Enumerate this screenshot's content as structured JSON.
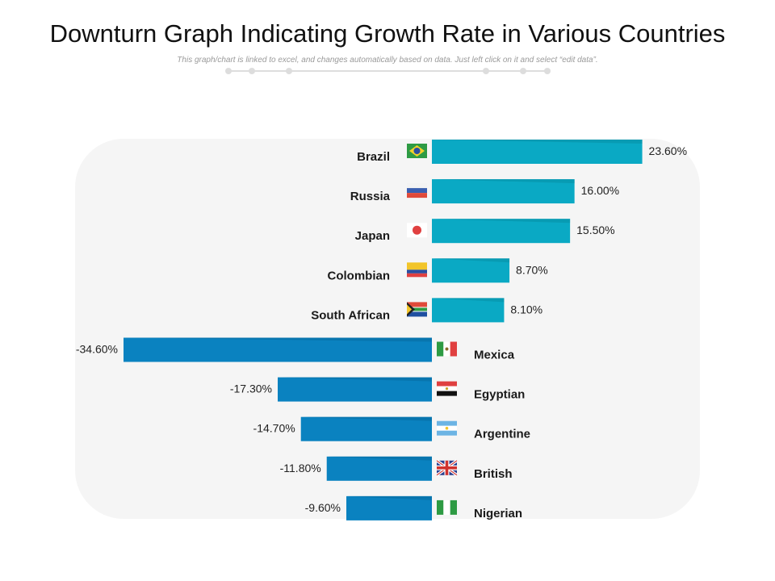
{
  "page": {
    "title": "Downturn Graph Indicating Growth Rate in Various Countries",
    "subtitle": "This graph/chart is linked to excel, and changes automatically based on data. Just left click on it and select “edit data”."
  },
  "colors": {
    "positive_bar": "#0aa9c4",
    "positive_bar_dark": "#078fa6",
    "negative_bar": "#0a82c0",
    "negative_bar_dark": "#076b9e",
    "panel_background": "#f5f5f5",
    "decor_line": "#dddddd"
  },
  "chart_data": {
    "type": "bar",
    "orientation": "horizontal",
    "title": "Downturn Graph Indicating Growth Rate in Various Countries",
    "unit": "%",
    "categories": [
      "Brazil",
      "Russia",
      "Japan",
      "Colombian",
      "South African",
      "Mexica",
      "Egyptian",
      "Argentine",
      "British",
      "Nigerian"
    ],
    "values": [
      23.6,
      16.0,
      15.5,
      8.7,
      8.1,
      -34.6,
      -17.3,
      -14.7,
      -11.8,
      -9.6
    ],
    "value_labels": [
      "23.60%",
      "16.00%",
      "15.50%",
      "8.70%",
      "8.10%",
      "-34.60%",
      "-17.30%",
      "-14.70%",
      "-11.80%",
      "-9.60%"
    ],
    "flag_icons": [
      "brazil-flag-icon",
      "russia-flag-icon",
      "japan-flag-icon",
      "colombia-flag-icon",
      "south-africa-flag-icon",
      "mexico-flag-icon",
      "egypt-flag-icon",
      "argentina-flag-icon",
      "uk-flag-icon",
      "nigeria-flag-icon"
    ],
    "xlim": [
      -34.6,
      23.6
    ],
    "legend": "none",
    "grid": false
  }
}
